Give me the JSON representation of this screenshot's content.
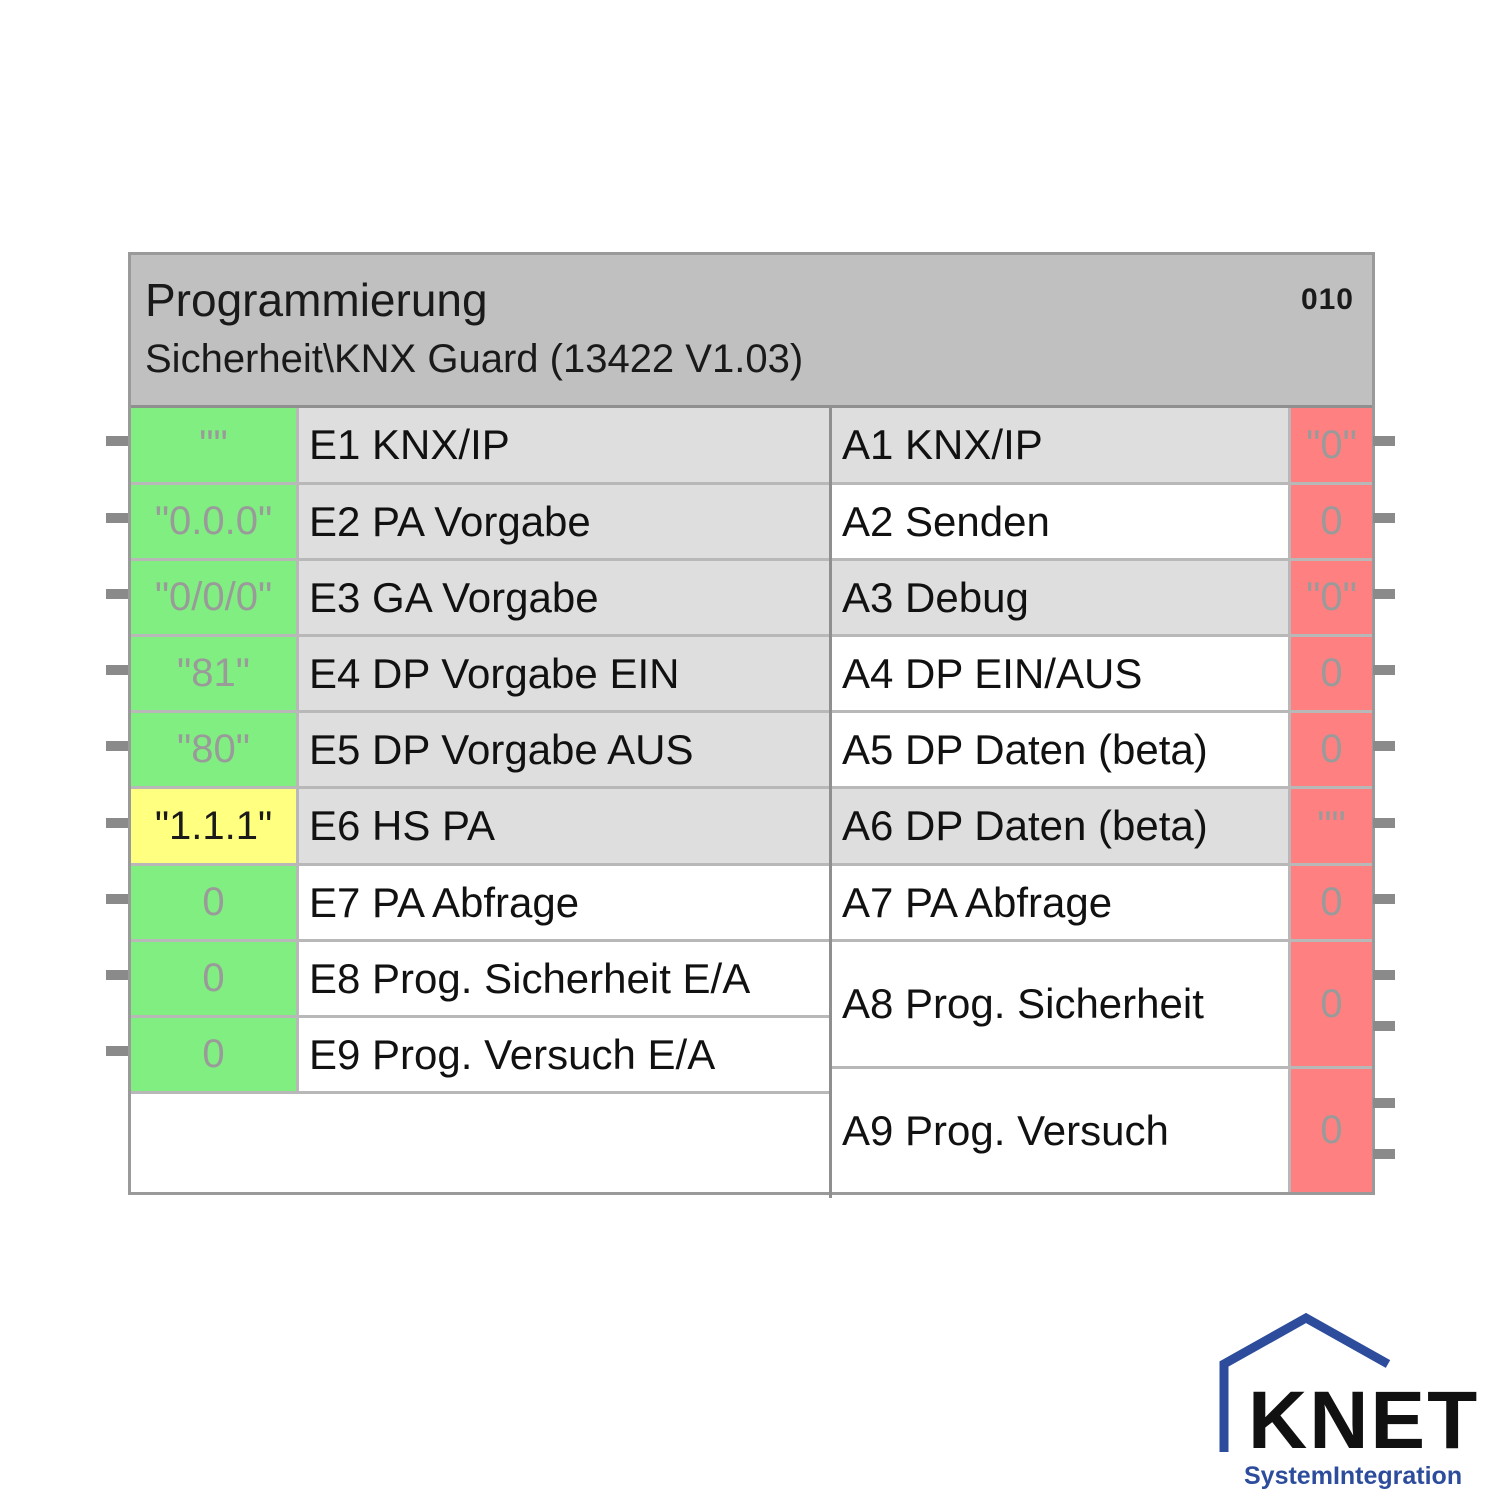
{
  "block": {
    "title": "Programmierung",
    "subtitle": "Sicherheit\\KNX Guard (13422 V1.03)",
    "corner_id": "010"
  },
  "inputs": [
    {
      "value": "\"\"",
      "label": "E1 KNX/IP",
      "value_color": "green"
    },
    {
      "value": "\"0.0.0\"",
      "label": "E2 PA Vorgabe",
      "value_color": "green"
    },
    {
      "value": "\"0/0/0\"",
      "label": "E3 GA Vorgabe",
      "value_color": "green"
    },
    {
      "value": "\"81\"",
      "label": "E4 DP Vorgabe EIN",
      "value_color": "green"
    },
    {
      "value": "\"80\"",
      "label": "E5 DP Vorgabe AUS",
      "value_color": "green"
    },
    {
      "value": "\"1.1.1\"",
      "label": "E6 HS PA",
      "value_color": "yellow"
    },
    {
      "value": "0",
      "label": "E7 PA Abfrage",
      "value_color": "green"
    },
    {
      "value": "0",
      "label": "E8 Prog. Sicherheit E/A",
      "value_color": "green"
    },
    {
      "value": "0",
      "label": "E9 Prog. Versuch E/A",
      "value_color": "green"
    }
  ],
  "outputs": [
    {
      "label": "A1 KNX/IP",
      "value": "\"0\""
    },
    {
      "label": "A2 Senden",
      "value": "0"
    },
    {
      "label": "A3 Debug",
      "value": "\"0\""
    },
    {
      "label": "A4 DP EIN/AUS",
      "value": "0"
    },
    {
      "label": "A5 DP Daten (beta)",
      "value": "0"
    },
    {
      "label": "A6 DP Daten (beta)",
      "value": "\"\""
    },
    {
      "label": "A7 PA Abfrage",
      "value": "0"
    },
    {
      "label": "A8 Prog. Sicherheit",
      "value": "0"
    },
    {
      "label": "A9 Prog. Versuch",
      "value": "0"
    }
  ],
  "colors": {
    "green": "#80ee80",
    "yellow": "#ffff80",
    "red": "#ff8080",
    "header": "#c0c0c0",
    "brand_blue": "#2d4d9c"
  },
  "logo": {
    "name": "KNET",
    "tagline": "SystemIntegration"
  }
}
